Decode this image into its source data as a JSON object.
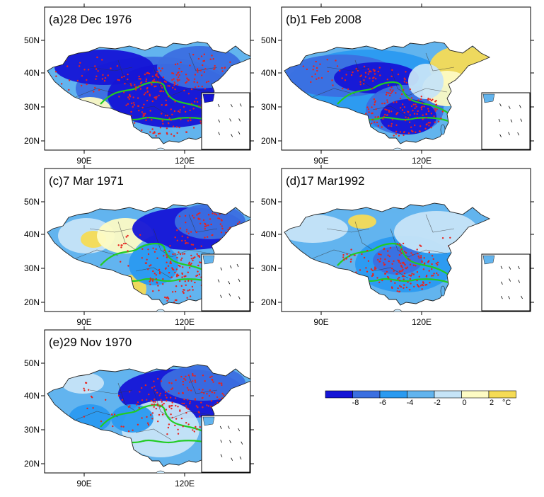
{
  "panels": [
    {
      "id": "a",
      "title": "(a)28 Dec 1976"
    },
    {
      "id": "b",
      "title": "(b)1 Feb 2008"
    },
    {
      "id": "c",
      "title": "(c)7 Mar 1971"
    },
    {
      "id": "d",
      "title": "(d)17 Mar1992"
    },
    {
      "id": "e",
      "title": "(e)29 Nov 1970"
    }
  ],
  "axes": {
    "lat_ticks": [
      "50N",
      "40N",
      "30N",
      "20N"
    ],
    "lon_ticks": [
      "90E",
      "120E"
    ]
  },
  "colorbar": {
    "levels": [
      "-8",
      "-6",
      "-4",
      "-2",
      "0",
      "2"
    ],
    "unit": "°C",
    "colors": [
      "#1515d6",
      "#3b6fe0",
      "#2a9af0",
      "#62b4ee",
      "#c6e4f7",
      "#fdfbc4",
      "#f5db55"
    ]
  },
  "colors": {
    "station_dot": "#e8231e",
    "river_line": "#22cc22"
  }
}
